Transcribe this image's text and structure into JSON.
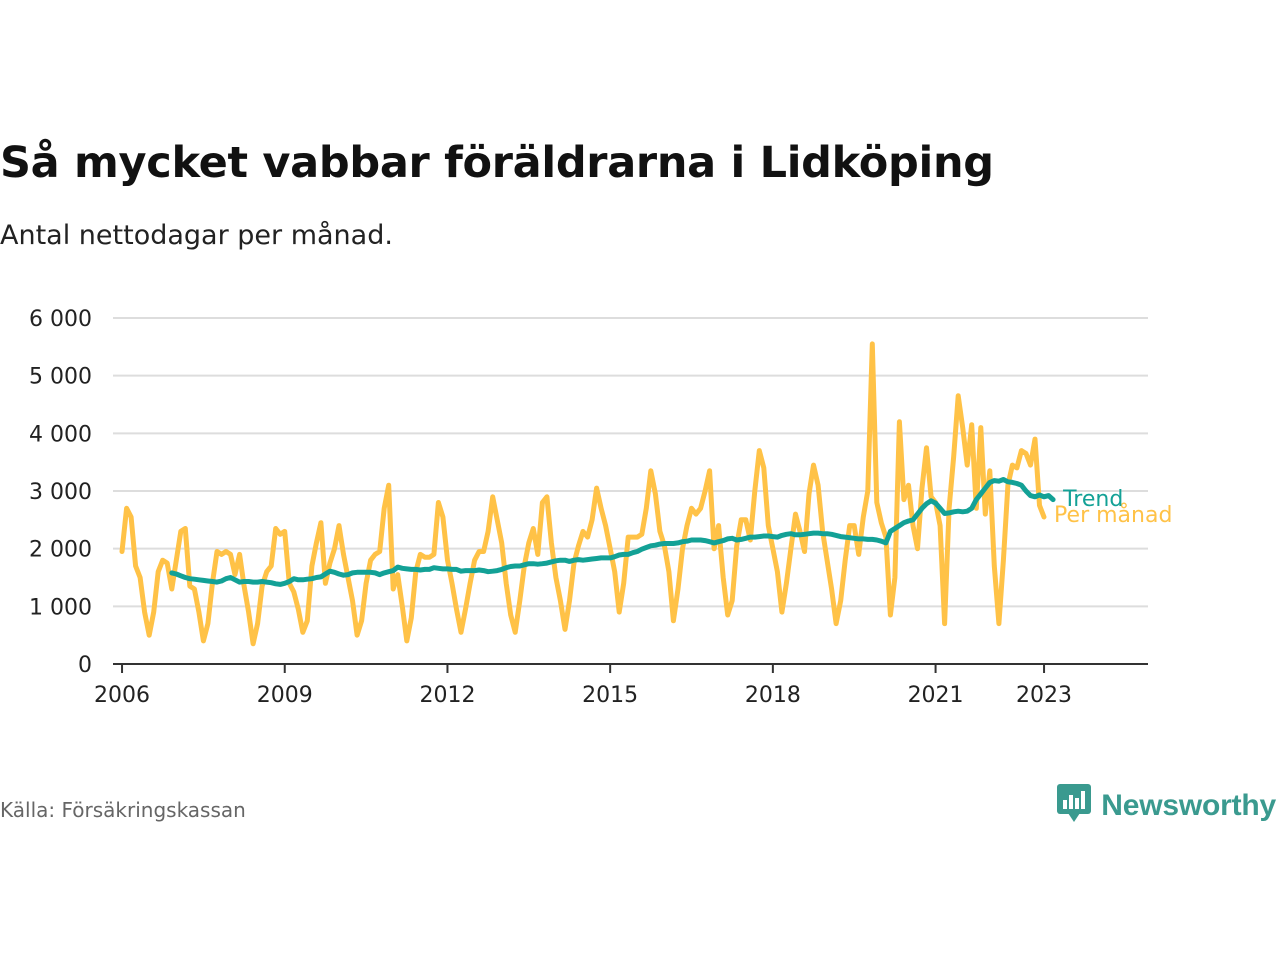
{
  "title": "Så mycket vabbar föräldrarna i Lidköping",
  "subtitle": "Antal nettodagar per månad.",
  "source": "Källa: Försäkringskassan",
  "brand": {
    "name": "Newsworthy",
    "icon": "newsworthy-logo-icon",
    "color": "#3a9a8f"
  },
  "colors": {
    "monthly": "#FFC247",
    "trend": "#13A196",
    "gridline": "#dddddd",
    "axis": "#333333"
  },
  "chart_data": {
    "type": "line",
    "x_axis": {
      "ticks": [
        "2006",
        "2009",
        "2012",
        "2015",
        "2018",
        "2021",
        "2023"
      ],
      "range": [
        "2005-11",
        "2024-12"
      ]
    },
    "y_axis": {
      "ticks": [
        "0",
        "1 000",
        "2 000",
        "3 000",
        "4 000",
        "5 000",
        "6 000"
      ],
      "range": [
        0,
        6000
      ]
    },
    "grid": true,
    "legend": "inline labels at line ends",
    "series": [
      {
        "name": "Per månad",
        "start": "2006-01",
        "values": [
          1950,
          2700,
          2550,
          1700,
          1500,
          900,
          500,
          900,
          1600,
          1800,
          1750,
          1300,
          1800,
          2300,
          2350,
          1350,
          1300,
          900,
          400,
          700,
          1400,
          1950,
          1900,
          1950,
          1900,
          1550,
          1900,
          1350,
          900,
          350,
          700,
          1350,
          1600,
          1700,
          2350,
          2250,
          2300,
          1400,
          1250,
          950,
          550,
          750,
          1700,
          2100,
          2450,
          1400,
          1750,
          2000,
          2400,
          1900,
          1500,
          1100,
          500,
          750,
          1400,
          1800,
          1900,
          1950,
          2700,
          3100,
          1300,
          1550,
          1000,
          400,
          800,
          1600,
          1900,
          1850,
          1850,
          1900,
          2800,
          2550,
          1800,
          1400,
          950,
          550,
          950,
          1400,
          1800,
          1950,
          1950,
          2300,
          2900,
          2500,
          2100,
          1400,
          850,
          550,
          1100,
          1700,
          2100,
          2350,
          1900,
          2800,
          2900,
          2100,
          1500,
          1100,
          600,
          1100,
          1750,
          2050,
          2300,
          2200,
          2500,
          3050,
          2700,
          2400,
          2000,
          1600,
          900,
          1400,
          2200,
          2200,
          2200,
          2250,
          2700,
          3350,
          2950,
          2300,
          2050,
          1600,
          750,
          1300,
          2000,
          2400,
          2700,
          2600,
          2700,
          3000,
          3350,
          2000,
          2400,
          1500,
          850,
          1100,
          2050,
          2500,
          2500,
          2150,
          3000,
          3700,
          3400,
          2400,
          2000,
          1600,
          900,
          1400,
          2000,
          2600,
          2300,
          1950,
          2950,
          3450,
          3100,
          2300,
          1800,
          1300,
          700,
          1100,
          1800,
          2400,
          2400,
          1900,
          2550,
          3000,
          5550,
          2800,
          2450,
          2200,
          850,
          1500,
          4200,
          2850,
          3100,
          2400,
          2000,
          3050,
          3750,
          2900,
          2800,
          2400,
          700,
          2700,
          3600,
          4650,
          4100,
          3450,
          4150,
          2700,
          4100,
          2600,
          3350,
          1700,
          700,
          1800,
          3100,
          3450,
          3400,
          3700,
          3650,
          3450,
          3900,
          2750,
          2550
        ]
      },
      {
        "name": "Trend",
        "start": "2006-12",
        "values": [
          1580,
          1560,
          1530,
          1500,
          1480,
          1470,
          1460,
          1450,
          1440,
          1430,
          1420,
          1440,
          1480,
          1500,
          1460,
          1420,
          1430,
          1430,
          1420,
          1420,
          1430,
          1420,
          1410,
          1390,
          1380,
          1400,
          1430,
          1480,
          1460,
          1460,
          1470,
          1480,
          1500,
          1510,
          1560,
          1610,
          1590,
          1560,
          1540,
          1550,
          1580,
          1590,
          1590,
          1590,
          1590,
          1580,
          1550,
          1580,
          1600,
          1620,
          1680,
          1660,
          1650,
          1640,
          1640,
          1630,
          1640,
          1640,
          1670,
          1660,
          1650,
          1650,
          1640,
          1640,
          1610,
          1620,
          1620,
          1620,
          1630,
          1620,
          1600,
          1610,
          1620,
          1640,
          1670,
          1690,
          1700,
          1700,
          1720,
          1740,
          1740,
          1730,
          1740,
          1750,
          1770,
          1790,
          1800,
          1800,
          1780,
          1800,
          1810,
          1800,
          1810,
          1820,
          1830,
          1840,
          1840,
          1840,
          1860,
          1890,
          1900,
          1900,
          1930,
          1950,
          1990,
          2020,
          2050,
          2060,
          2080,
          2090,
          2090,
          2090,
          2100,
          2120,
          2130,
          2150,
          2150,
          2150,
          2140,
          2120,
          2100,
          2120,
          2140,
          2170,
          2180,
          2150,
          2160,
          2180,
          2200,
          2200,
          2210,
          2220,
          2220,
          2210,
          2200,
          2230,
          2250,
          2260,
          2240,
          2240,
          2250,
          2260,
          2270,
          2270,
          2260,
          2260,
          2250,
          2230,
          2210,
          2200,
          2190,
          2180,
          2170,
          2170,
          2160,
          2160,
          2150,
          2130,
          2100,
          2300,
          2350,
          2400,
          2450,
          2480,
          2500,
          2600,
          2700,
          2780,
          2830,
          2790,
          2700,
          2610,
          2620,
          2640,
          2650,
          2640,
          2650,
          2700,
          2850,
          2950,
          3050,
          3150,
          3180,
          3170,
          3200,
          3160,
          3150,
          3130,
          3100,
          3000,
          2920,
          2900,
          2930,
          2900,
          2920,
          2850
        ]
      }
    ]
  }
}
